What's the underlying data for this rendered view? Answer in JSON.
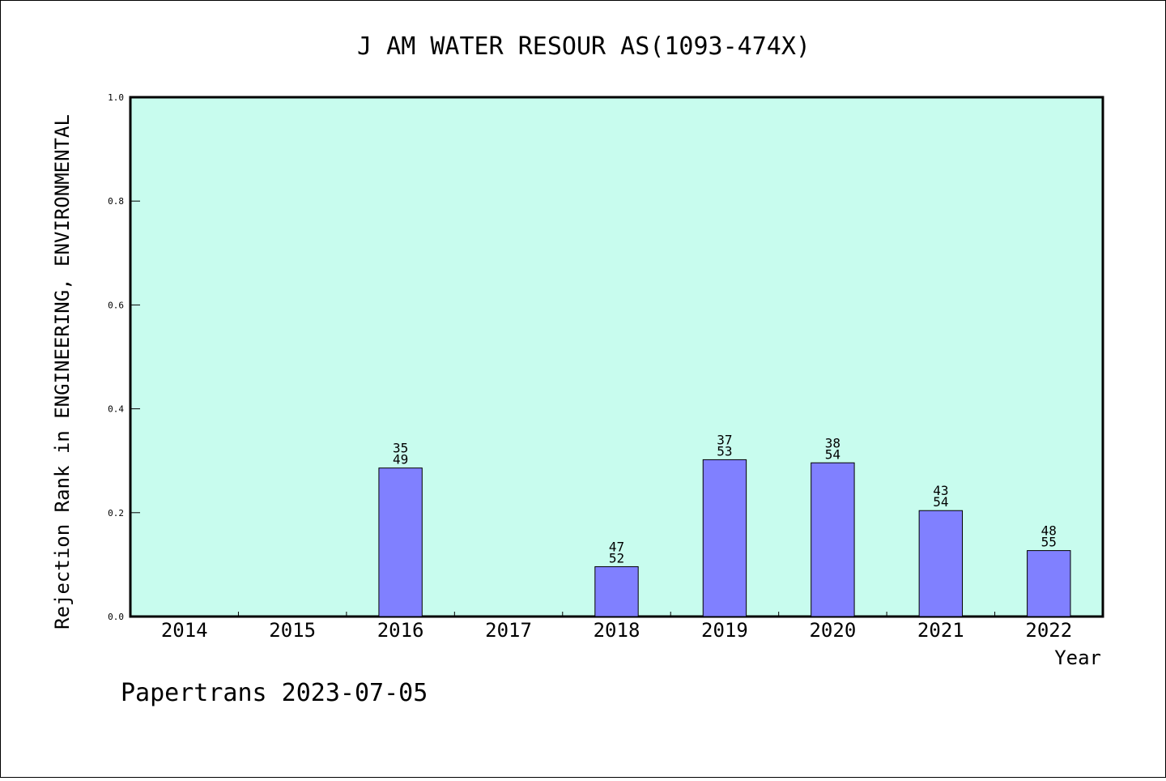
{
  "chart_data": {
    "type": "bar",
    "title": "J AM WATER RESOUR AS(1093-474X)",
    "xlabel": "Year",
    "ylabel": "Rejection Rank in ENGINEERING, ENVIRONMENTAL",
    "ylim": [
      0,
      1.0
    ],
    "yticks": [
      "0.0",
      "0.2",
      "0.4",
      "0.6",
      "0.8",
      "1.0"
    ],
    "categories": [
      "2014",
      "2015",
      "2016",
      "2017",
      "2018",
      "2019",
      "2020",
      "2021",
      "2022"
    ],
    "values": [
      null,
      null,
      0.286,
      null,
      0.096,
      0.302,
      0.296,
      0.204,
      0.127
    ],
    "bar_labels": [
      null,
      null,
      [
        "35",
        "49"
      ],
      null,
      [
        "47",
        "52"
      ],
      [
        "37",
        "53"
      ],
      [
        "38",
        "54"
      ],
      [
        "43",
        "54"
      ],
      [
        "48",
        "55"
      ]
    ],
    "grid": false,
    "colors": {
      "plot_background": "#c8fcee",
      "bar_fill": "#8080ff",
      "axis": "#000000"
    }
  },
  "footer": {
    "text": "Papertrans 2023-07-05"
  }
}
